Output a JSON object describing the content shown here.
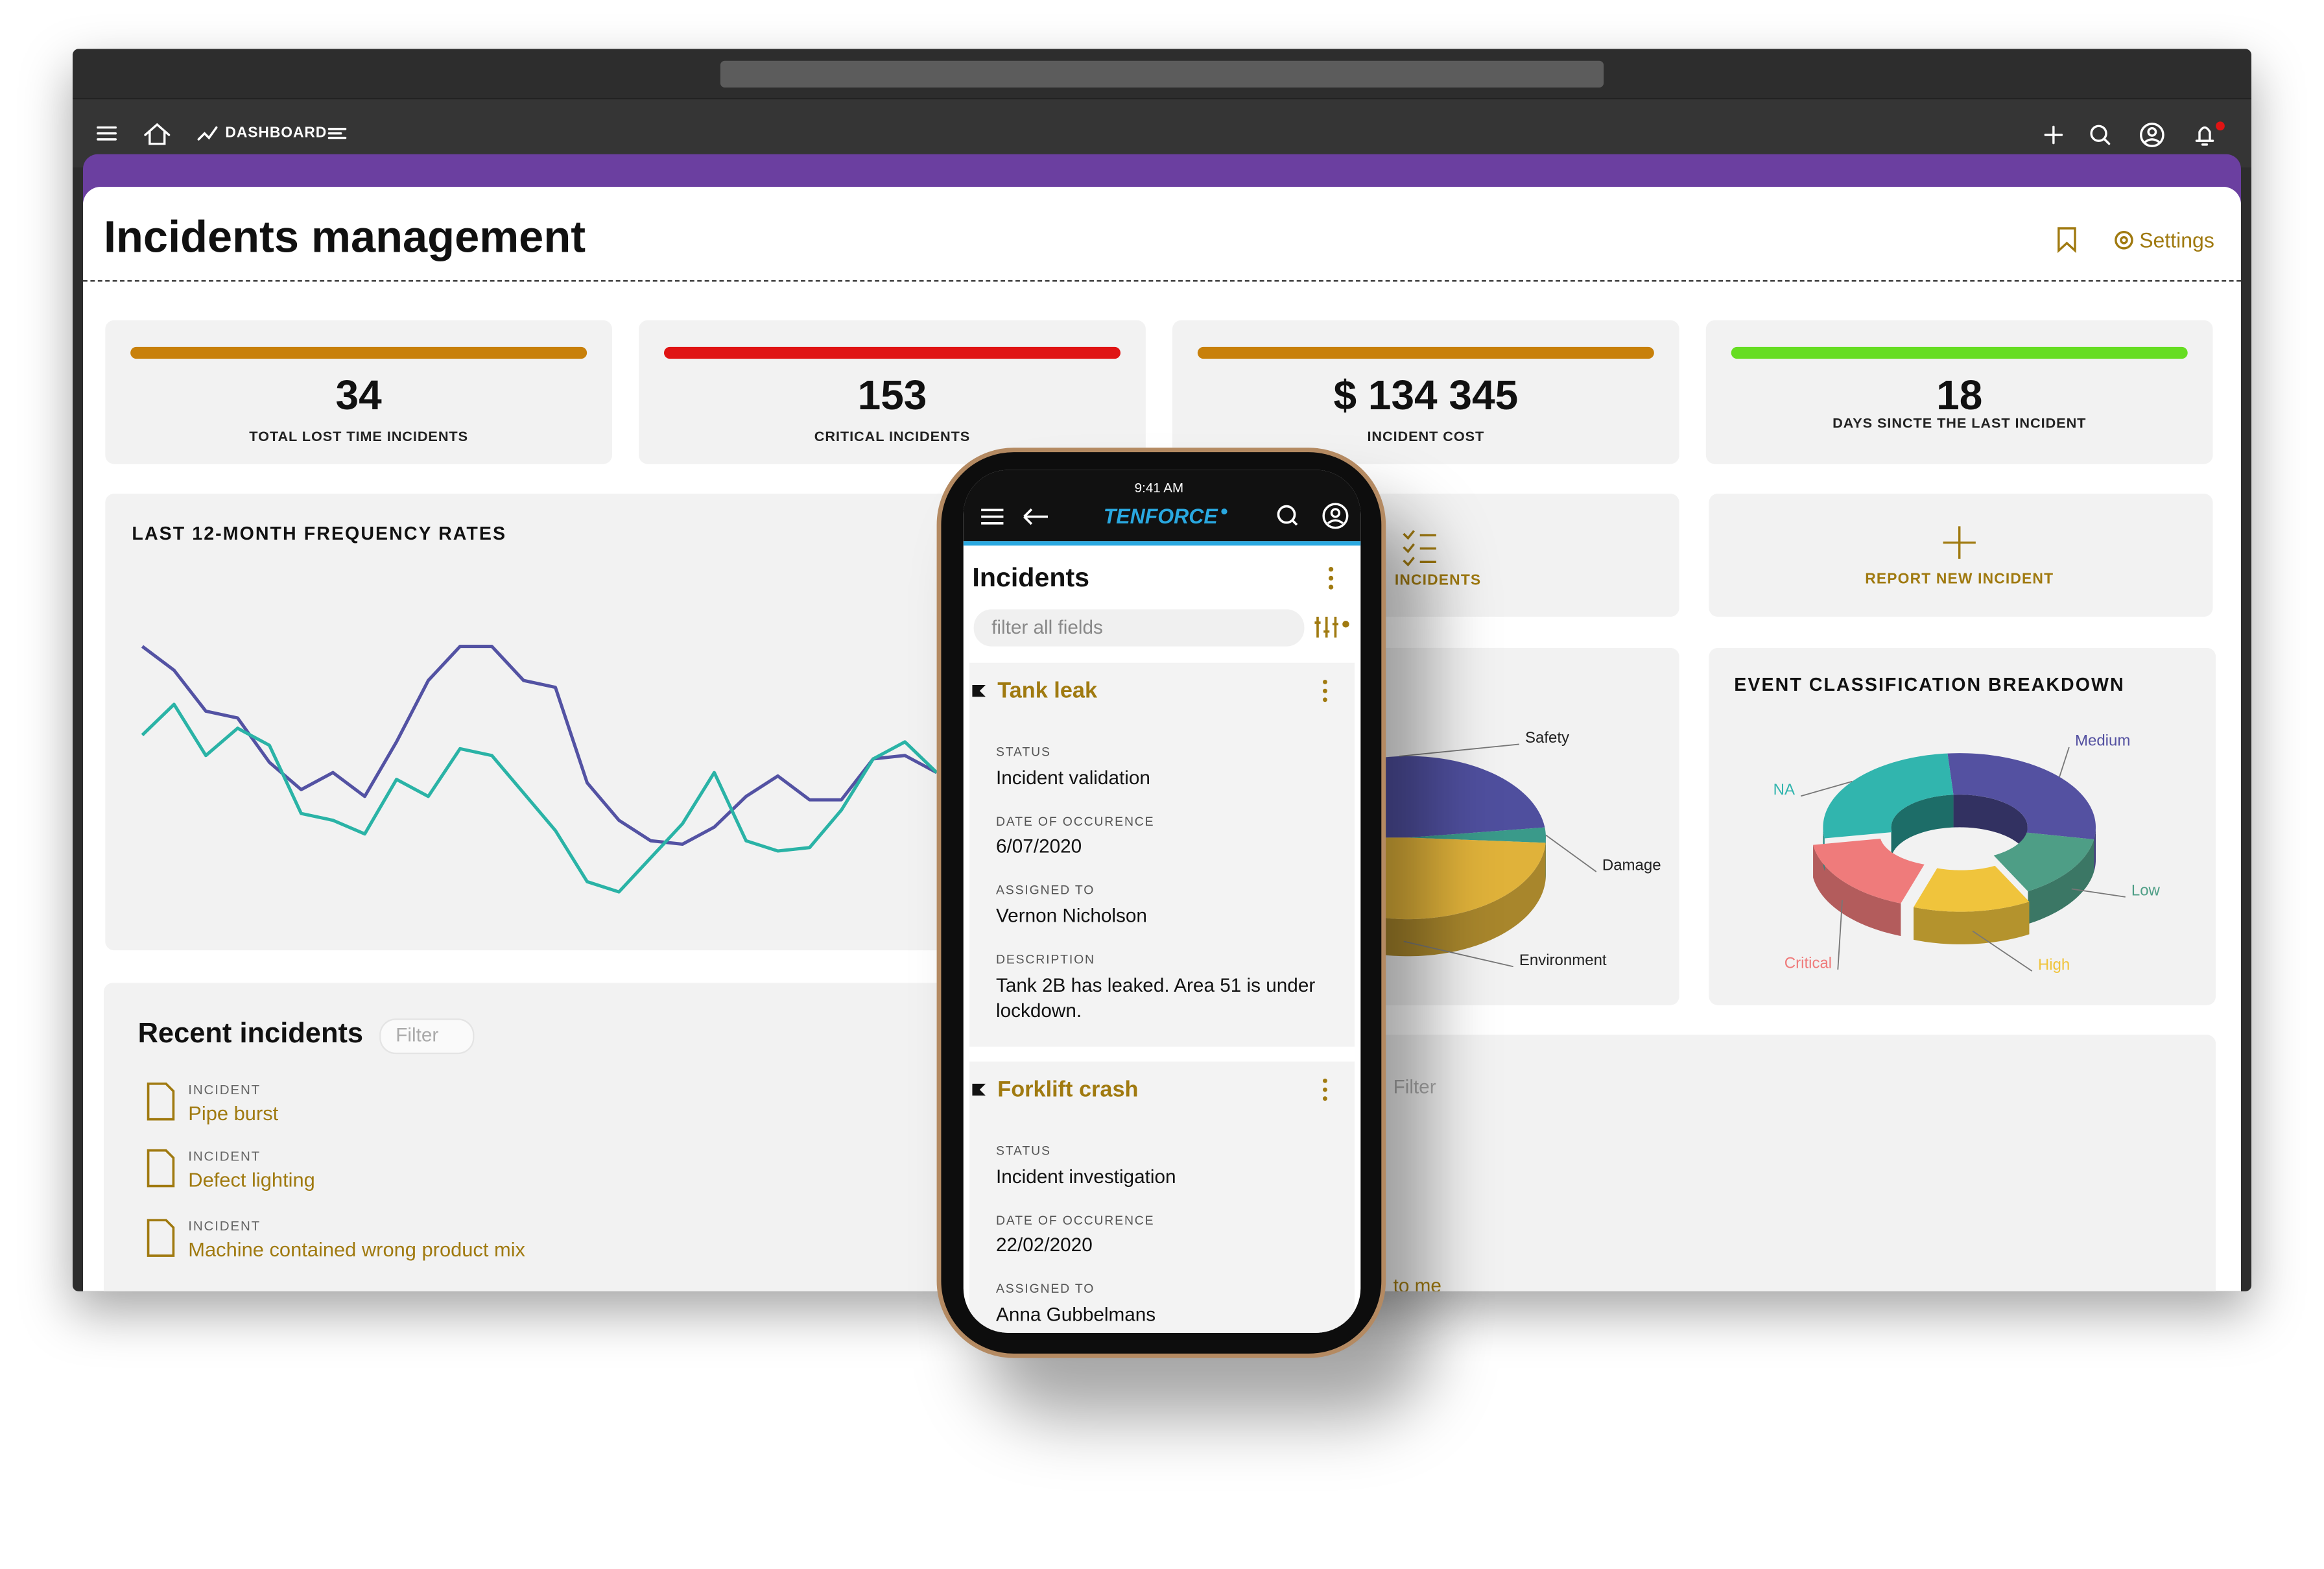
{
  "window": {
    "nav_section": "DASHBOARD"
  },
  "header": {
    "title": "Incidents management",
    "settings": "Settings"
  },
  "kpis": [
    {
      "value": 34,
      "label": "TOTAL LOST TIME INCIDENTS",
      "color": "#c8800a"
    },
    {
      "value": 153,
      "label": "CRITICAL INCIDENTS",
      "color": "#e01414"
    },
    {
      "value": "$ 134 345",
      "label": "INCIDENT COST",
      "color": "#c8800a"
    },
    {
      "value": 18,
      "label": "DAYS SINCTE THE LAST INCIDENT",
      "color": "#66dd22"
    }
  ],
  "actions": [
    {
      "label": "INCIDENTS"
    },
    {
      "label": "REPORT NEW INCIDENT"
    }
  ],
  "frequency_chart": {
    "type": "line",
    "title": "LAST 12-MONTH FREQUENCY RATES",
    "series": [
      {
        "color": "#5352a3",
        "values": [
          80,
          73,
          61,
          59,
          46,
          38,
          43,
          36,
          52,
          70,
          80,
          80,
          70,
          68,
          40,
          29,
          23,
          22,
          27,
          36,
          42,
          35,
          35,
          47,
          48,
          43
        ]
      },
      {
        "color": "#2ab3a6",
        "values": [
          54,
          63,
          48,
          56,
          51,
          31,
          29,
          25,
          41,
          36,
          50,
          48,
          37,
          26,
          11,
          8,
          18,
          28,
          43,
          23,
          20,
          21,
          32,
          47,
          52,
          43
        ]
      }
    ]
  },
  "category_chart": {
    "type": "pie",
    "categories": [
      "Safety",
      "Damage",
      "Environment"
    ],
    "values": [
      48,
      3,
      49
    ],
    "colors": [
      "#4f4f9e",
      "#3a9a8a",
      "#e0b23a"
    ]
  },
  "classification_chart": {
    "type": "pie",
    "title": "EVENT CLASSIFICATION BREAKDOWN",
    "categories": [
      "Medium",
      "Low",
      "High",
      "Critical",
      "NA"
    ],
    "values": [
      29,
      14,
      14,
      17,
      26
    ],
    "colors": [
      "#5451a1",
      "#4e9e86",
      "#f0c43c",
      "#ef7b7b",
      "#31b5ae"
    ],
    "exploded": [
      false,
      false,
      true,
      true,
      false
    ]
  },
  "recent_incidents": {
    "title": "Recent incidents",
    "filter_placeholder": "Filter",
    "items": [
      {
        "type": "INCIDENT",
        "name": "Pipe burst"
      },
      {
        "type": "INCIDENT",
        "name": "Defect lighting"
      },
      {
        "type": "INCIDENT",
        "name": "Machine contained wrong product mix"
      }
    ]
  },
  "right_panel": {
    "filter_placeholder": "Filter",
    "link": "to me"
  },
  "phone": {
    "time": "9:41 AM",
    "brand": "TENFORCE",
    "title": "Incidents",
    "search_placeholder": "filter all fields",
    "cards": [
      {
        "title": "Tank leak",
        "fields": [
          {
            "label": "STATUS",
            "value": "Incident validation"
          },
          {
            "label": "DATE OF OCCURENCE",
            "value": "6/07/2020"
          },
          {
            "label": "ASSIGNED TO",
            "value": "Vernon Nicholson"
          },
          {
            "label": "DESCRIPTION",
            "value": "Tank 2B has leaked. Area 51 is under lockdown."
          }
        ]
      },
      {
        "title": "Forklift crash",
        "fields": [
          {
            "label": "STATUS",
            "value": "Incident investigation"
          },
          {
            "label": "DATE OF OCCURENCE",
            "value": "22/02/2020"
          },
          {
            "label": "ASSIGNED TO",
            "value": "Anna Gubbelmans"
          }
        ]
      }
    ]
  }
}
